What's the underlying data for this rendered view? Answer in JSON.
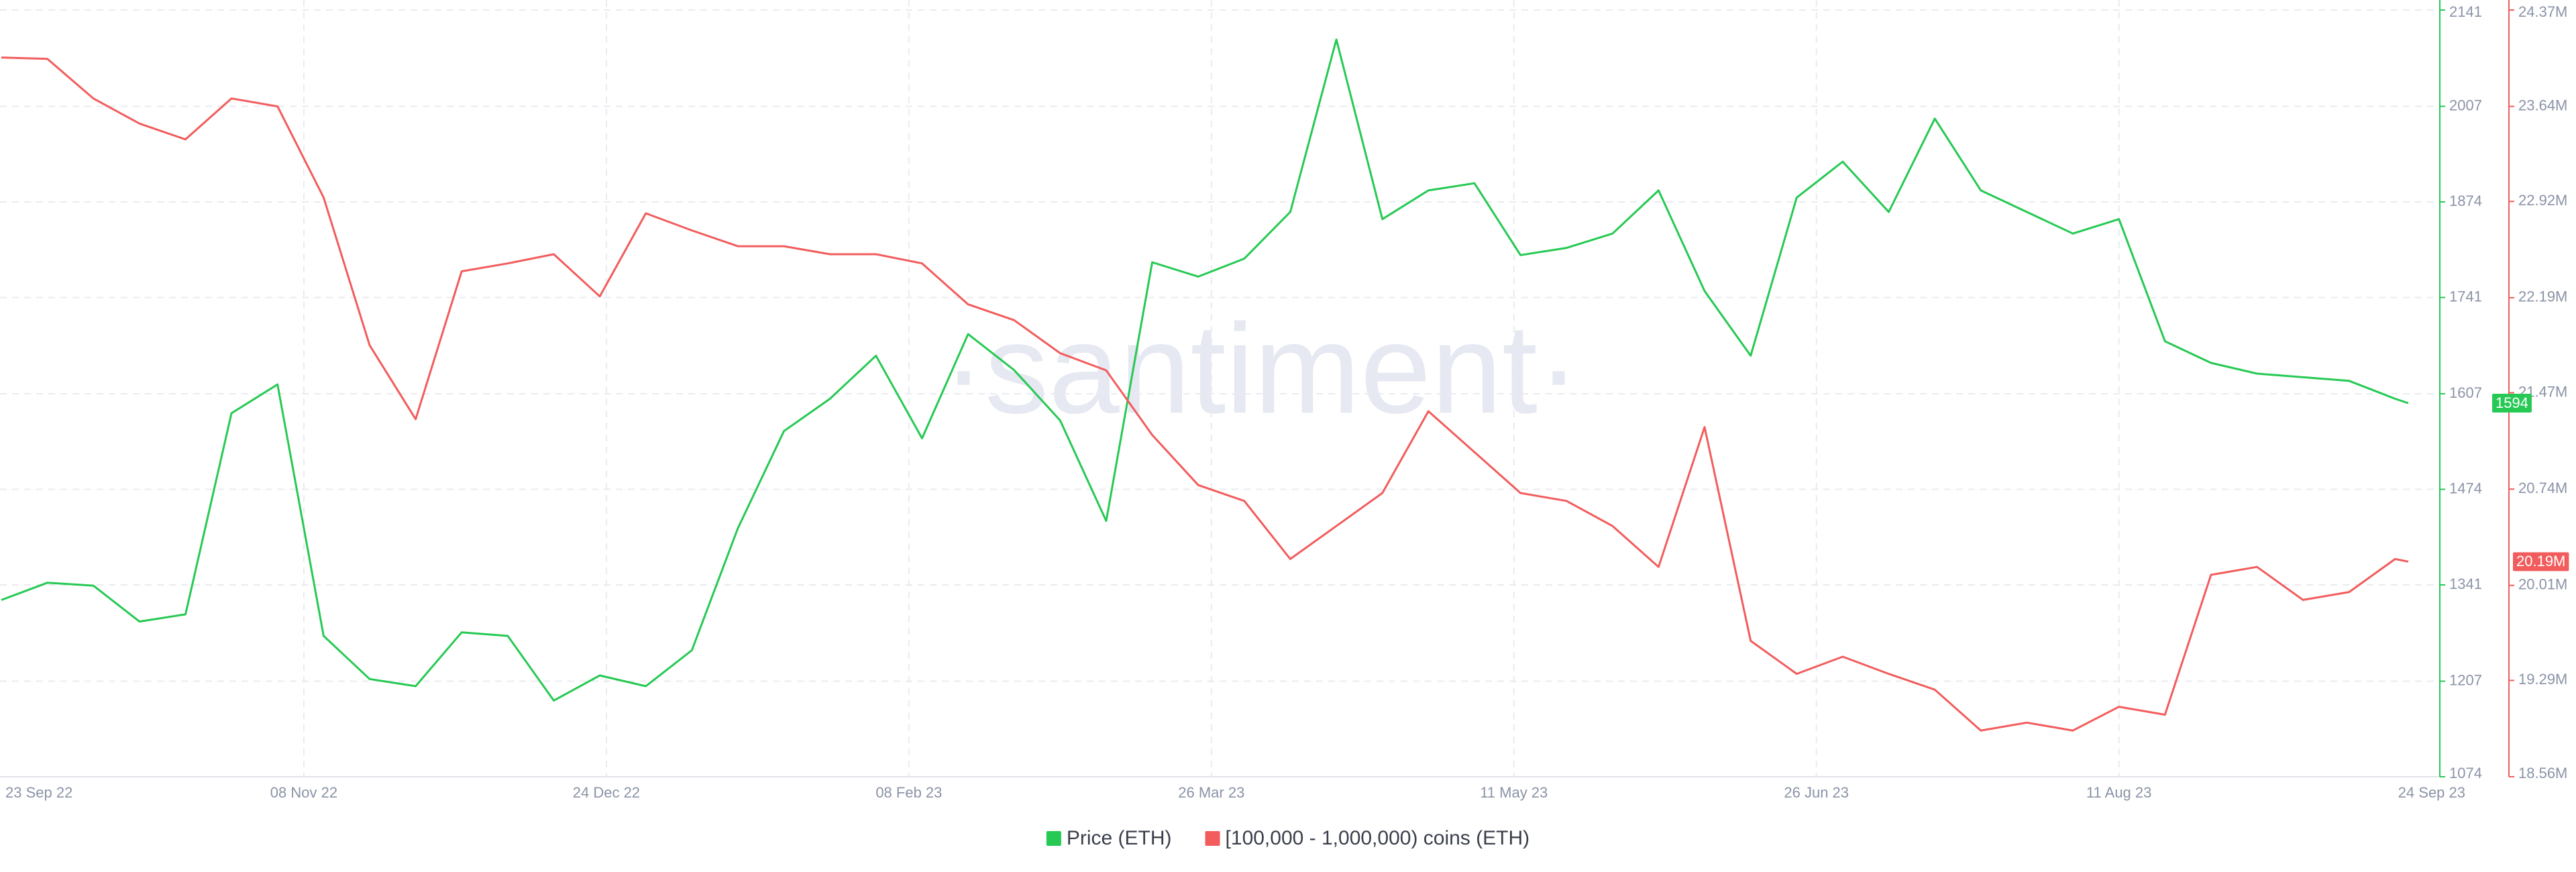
{
  "chart_data": {
    "type": "line",
    "watermark": "·santiment·",
    "x": [
      "2022-09-23",
      "2022-09-30",
      "2022-10-07",
      "2022-10-14",
      "2022-10-21",
      "2022-10-28",
      "2022-11-04",
      "2022-11-11",
      "2022-11-18",
      "2022-11-25",
      "2022-12-02",
      "2022-12-09",
      "2022-12-16",
      "2022-12-23",
      "2022-12-30",
      "2023-01-06",
      "2023-01-13",
      "2023-01-20",
      "2023-01-27",
      "2023-02-03",
      "2023-02-10",
      "2023-02-17",
      "2023-02-24",
      "2023-03-03",
      "2023-03-10",
      "2023-03-17",
      "2023-03-24",
      "2023-03-31",
      "2023-04-07",
      "2023-04-14",
      "2023-04-21",
      "2023-04-28",
      "2023-05-05",
      "2023-05-12",
      "2023-05-19",
      "2023-05-26",
      "2023-06-02",
      "2023-06-09",
      "2023-06-16",
      "2023-06-23",
      "2023-06-30",
      "2023-07-07",
      "2023-07-14",
      "2023-07-21",
      "2023-07-28",
      "2023-08-04",
      "2023-08-11",
      "2023-08-18",
      "2023-08-25",
      "2023-09-01",
      "2023-09-08",
      "2023-09-15",
      "2023-09-22",
      "2023-09-24"
    ],
    "xlim": [
      "2022-09-23",
      "2023-09-24"
    ],
    "xticks": [
      {
        "value": "2022-09-23",
        "label": "23 Sep 22"
      },
      {
        "value": "2022-11-08",
        "label": "08 Nov 22"
      },
      {
        "value": "2022-12-24",
        "label": "24 Dec 22"
      },
      {
        "value": "2023-02-08",
        "label": "08 Feb 23"
      },
      {
        "value": "2023-03-26",
        "label": "26 Mar 23"
      },
      {
        "value": "2023-05-11",
        "label": "11 May 23"
      },
      {
        "value": "2023-06-26",
        "label": "26 Jun 23"
      },
      {
        "value": "2023-08-11",
        "label": "11 Aug 23"
      },
      {
        "value": "2023-09-24",
        "label": "24 Sep 23"
      }
    ],
    "ylim": [
      1074,
      2141
    ],
    "yticks": [
      1074,
      1207,
      1341,
      1474,
      1607,
      1741,
      1874,
      2007,
      2141
    ],
    "y2lim": [
      18560000,
      24370000
    ],
    "y2ticks": [
      {
        "value": 18560000,
        "label": "18.56M"
      },
      {
        "value": 19290000,
        "label": "19.29M"
      },
      {
        "value": 20010000,
        "label": "20.01M"
      },
      {
        "value": 20740000,
        "label": "20.74M"
      },
      {
        "value": 21470000,
        "label": "21.47M"
      },
      {
        "value": 22190000,
        "label": "22.19M"
      },
      {
        "value": 22920000,
        "label": "22.92M"
      },
      {
        "value": 23640000,
        "label": "23.64M"
      },
      {
        "value": 24370000,
        "label": "24.37M"
      }
    ],
    "grid": true,
    "series": [
      {
        "name": "Price (ETH)",
        "color": "#26c953",
        "axis": "y",
        "last_value_label": "1594",
        "values": [
          1320,
          1344,
          1340,
          1290,
          1300,
          1580,
          1620,
          1270,
          1210,
          1200,
          1275,
          1270,
          1180,
          1215,
          1200,
          1250,
          1420,
          1555,
          1600,
          1660,
          1545,
          1690,
          1640,
          1570,
          1430,
          1790,
          1770,
          1795,
          1860,
          2100,
          1850,
          1890,
          1900,
          1800,
          1810,
          1830,
          1890,
          1750,
          1660,
          1880,
          1930,
          1860,
          1990,
          1890,
          1860,
          1830,
          1850,
          1680,
          1650,
          1635,
          1630,
          1625,
          1600,
          1594
        ]
      },
      {
        "name": "[100,000  - 1,000,000) coins (ETH)",
        "color": "#f25c5c",
        "axis": "y2",
        "last_value_label": "20.19M",
        "values": [
          24010000,
          24000000,
          23700000,
          23510000,
          23390000,
          23700000,
          23640000,
          22950000,
          21830000,
          21270000,
          22390000,
          22450000,
          22520000,
          22200000,
          22830000,
          22700000,
          22580000,
          22580000,
          22520000,
          22520000,
          22450000,
          22140000,
          22020000,
          21770000,
          21640000,
          21150000,
          20770000,
          20650000,
          20210000,
          20460000,
          20710000,
          21330000,
          21020000,
          20710000,
          20650000,
          20460000,
          20150000,
          21210000,
          19590000,
          19340000,
          19470000,
          19340000,
          19220000,
          18910000,
          18970000,
          18910000,
          19090000,
          19030000,
          20090000,
          20150000,
          19900000,
          19960000,
          20210000,
          20190000
        ]
      }
    ]
  }
}
